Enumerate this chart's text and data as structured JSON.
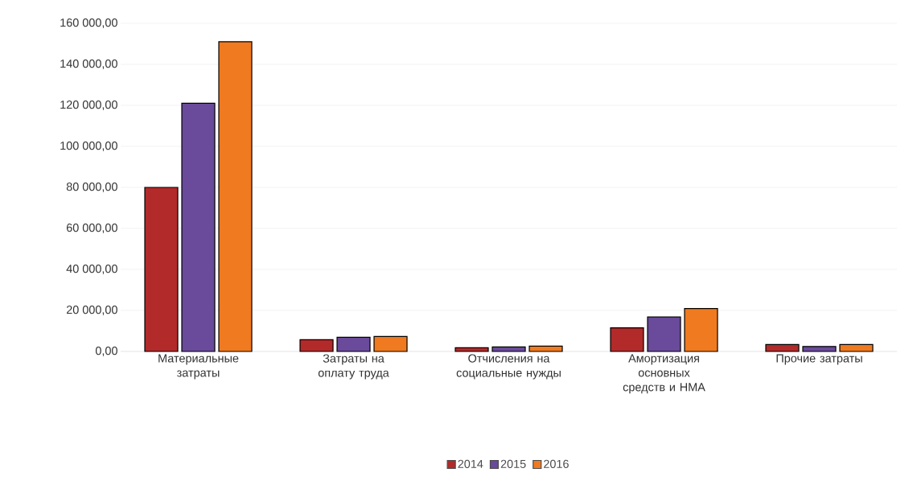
{
  "chart_data": {
    "type": "bar",
    "categories": [
      "Материальные затраты",
      "Затраты на оплату труда",
      "Отчисления на социальные нужды",
      "Амортизация основных средств и НМА",
      "Прочие затраты"
    ],
    "series": [
      {
        "name": "2014",
        "color": "#b22a2a",
        "values": [
          80000,
          5700,
          1800,
          11500,
          3400
        ]
      },
      {
        "name": "2015",
        "color": "#6a4a9a",
        "values": [
          121000,
          6900,
          2200,
          16800,
          2400
        ]
      },
      {
        "name": "2016",
        "color": "#f07a20",
        "values": [
          151000,
          7300,
          2600,
          20900,
          3400
        ]
      }
    ],
    "ylim": [
      0,
      160000
    ],
    "yticks": [
      {
        "value": 0,
        "label": "0,00"
      },
      {
        "value": 20000,
        "label": "20 000,00"
      },
      {
        "value": 40000,
        "label": "40 000,00"
      },
      {
        "value": 60000,
        "label": "60 000,00"
      },
      {
        "value": 80000,
        "label": "80 000,00"
      },
      {
        "value": 100000,
        "label": "100 000,00"
      },
      {
        "value": 120000,
        "label": "120 000,00"
      },
      {
        "value": 140000,
        "label": "140 000,00"
      },
      {
        "value": 160000,
        "label": "160 000,00"
      }
    ],
    "grid": "y",
    "legend": "bottom"
  }
}
